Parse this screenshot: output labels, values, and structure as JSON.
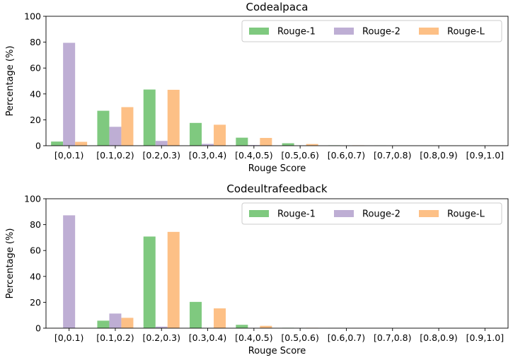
{
  "chart_data": [
    {
      "type": "bar",
      "title": "Codealpaca",
      "xlabel": "Rouge Score",
      "ylabel": "Percentage (%)",
      "ylim": [
        0,
        100
      ],
      "yticks": [
        0,
        20,
        40,
        60,
        80,
        100
      ],
      "categories": [
        "[0,0.1)",
        "[0.1,0.2)",
        "[0.2,0.3)",
        "[0.3,0.4)",
        "[0.4,0.5)",
        "[0.5,0.6)",
        "[0.6,0.7)",
        "[0.7,0.8)",
        "[0.8,0.9)",
        "[0.9,1.0]"
      ],
      "legend_position": "top-right",
      "series": [
        {
          "name": "Rouge-1",
          "color": "#7fc97f",
          "values": [
            3.2,
            27.0,
            43.4,
            17.6,
            6.2,
            1.9,
            0.3,
            0.2,
            0.1,
            0.0
          ]
        },
        {
          "name": "Rouge-2",
          "color": "#beaed4",
          "values": [
            79.5,
            14.6,
            3.7,
            1.4,
            0.5,
            0.2,
            0.0,
            0.0,
            0.0,
            0.0
          ]
        },
        {
          "name": "Rouge-L",
          "color": "#fdc086",
          "values": [
            3.0,
            29.8,
            43.2,
            16.2,
            6.0,
            1.3,
            0.3,
            0.1,
            0.1,
            0.0
          ]
        }
      ]
    },
    {
      "type": "bar",
      "title": "Codeultrafeedback",
      "xlabel": "Rouge Score",
      "ylabel": "Percentage (%)",
      "ylim": [
        0,
        100
      ],
      "yticks": [
        0,
        20,
        40,
        60,
        80,
        100
      ],
      "categories": [
        "[0,0.1)",
        "[0.1,0.2)",
        "[0.2,0.3)",
        "[0.3,0.4)",
        "[0.4,0.5)",
        "[0.5,0.6)",
        "[0.6,0.7)",
        "[0.7,0.8)",
        "[0.8,0.9)",
        "[0.9,1.0]"
      ],
      "legend_position": "top-right",
      "series": [
        {
          "name": "Rouge-1",
          "color": "#7fc97f",
          "values": [
            0.1,
            5.8,
            70.8,
            20.3,
            2.6,
            0.3,
            0.1,
            0.0,
            0.0,
            0.0
          ]
        },
        {
          "name": "Rouge-2",
          "color": "#beaed4",
          "values": [
            87.2,
            11.3,
            1.2,
            0.2,
            0.1,
            0.0,
            0.0,
            0.0,
            0.0,
            0.0
          ]
        },
        {
          "name": "Rouge-L",
          "color": "#fdc086",
          "values": [
            0.1,
            8.0,
            74.4,
            15.3,
            1.8,
            0.3,
            0.1,
            0.0,
            0.0,
            0.0
          ]
        }
      ]
    }
  ]
}
